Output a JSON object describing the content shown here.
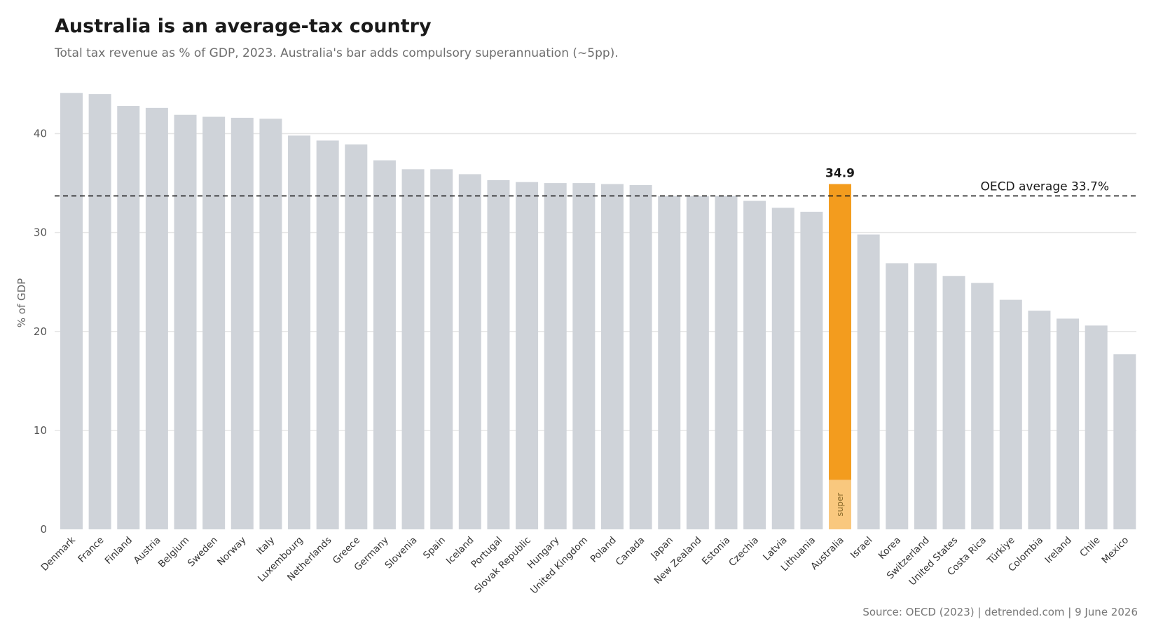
{
  "header": {
    "title": "Australia is an average-tax country",
    "subtitle": "Total tax revenue as % of GDP, 2023. Australia's bar adds compulsory superannuation (~5pp)."
  },
  "footer": {
    "source": "Source: OECD (2023) | detrended.com | 9 June 2026"
  },
  "colors": {
    "bar_default": "#cfd3d9",
    "bar_highlight": "#f39c1e",
    "bar_super": "#f9c87e",
    "gridline": "#e6e6e6",
    "reference_line": "#1a1a1a"
  },
  "chart_data": {
    "type": "bar",
    "ylabel": "% of GDP",
    "ylim": [
      0,
      45
    ],
    "yticks": [
      0,
      10,
      20,
      30,
      40
    ],
    "grid": true,
    "categories": [
      "Denmark",
      "France",
      "Finland",
      "Austria",
      "Belgium",
      "Sweden",
      "Norway",
      "Italy",
      "Luxembourg",
      "Netherlands",
      "Greece",
      "Germany",
      "Slovenia",
      "Spain",
      "Iceland",
      "Portugal",
      "Slovak Republic",
      "Hungary",
      "United Kingdom",
      "Poland",
      "Canada",
      "Japan",
      "New Zealand",
      "Estonia",
      "Czechia",
      "Latvia",
      "Lithuania",
      "Australia",
      "Israel",
      "Korea",
      "Switzerland",
      "United States",
      "Costa Rica",
      "Türkiye",
      "Colombia",
      "Ireland",
      "Chile",
      "Mexico"
    ],
    "values": [
      44.1,
      44.0,
      42.8,
      42.6,
      41.9,
      41.7,
      41.6,
      41.5,
      39.8,
      39.3,
      38.9,
      37.3,
      36.4,
      36.4,
      35.9,
      35.3,
      35.1,
      35.0,
      35.0,
      34.9,
      34.8,
      33.7,
      33.7,
      33.7,
      33.2,
      32.5,
      32.1,
      34.9,
      29.8,
      26.9,
      26.9,
      25.6,
      24.9,
      23.2,
      22.1,
      21.3,
      20.6,
      17.7
    ],
    "highlight": {
      "category": "Australia",
      "value_label": "34.9",
      "super_component": 5.0,
      "super_label": "super"
    },
    "reference_line": {
      "value": 33.7,
      "label": "OECD average 33.7%",
      "style": "dashed"
    }
  }
}
